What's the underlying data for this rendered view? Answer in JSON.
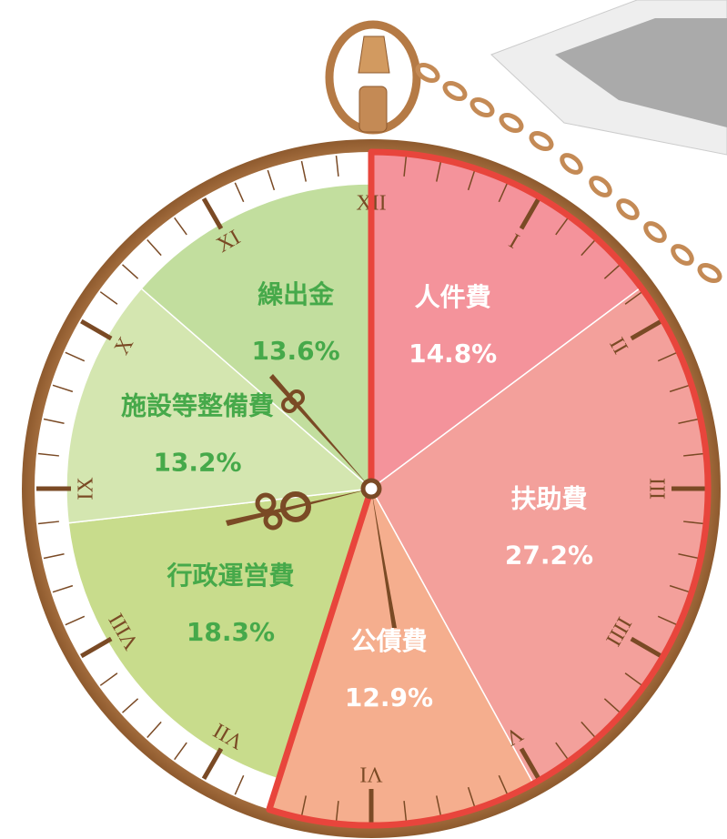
{
  "chart_data": {
    "type": "pie",
    "categories": [
      "人件費",
      "扶助費",
      "公債費",
      "行政運営費",
      "施設等整備費",
      "繰出金"
    ],
    "values": [
      14.8,
      27.2,
      12.9,
      18.3,
      13.2,
      13.6
    ],
    "value_labels": [
      "14.8%",
      "27.2%",
      "12.9%",
      "18.3%",
      "13.2%",
      "13.6%"
    ],
    "colors": [
      "#f4939b",
      "#f3a09b",
      "#f5ae8e",
      "#c8dc8c",
      "#d4e6b0",
      "#c2de9e"
    ],
    "highlight": [
      true,
      true,
      true,
      false,
      false,
      false
    ],
    "dial_numerals": [
      "XII",
      "I",
      "II",
      "III",
      "IIII",
      "V",
      "VI",
      "VII",
      "VIII",
      "IX",
      "X",
      "XI"
    ]
  }
}
